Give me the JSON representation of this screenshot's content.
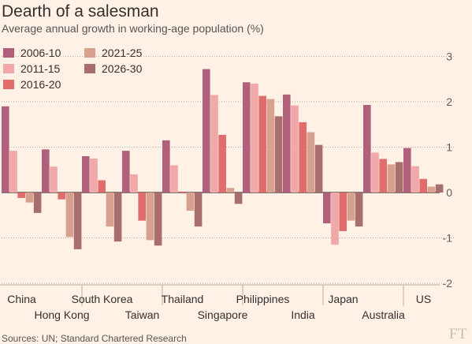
{
  "header": {
    "title": "Dearth of a salesman",
    "subtitle": "Average annual growth in working-age population (%)"
  },
  "footer": {
    "source": "Sources: UN; Standard Chartered Research",
    "logo": "FT"
  },
  "chart_data": {
    "type": "bar",
    "title": "Dearth of a salesman",
    "subtitle": "Average annual growth in working-age population (%)",
    "xlabel": "",
    "ylabel": "",
    "ylim": [
      -2,
      3
    ],
    "yticks": [
      3,
      2,
      1,
      0,
      -1,
      -2
    ],
    "grid": true,
    "legend_position": "top-left",
    "categories": [
      "China",
      "Hong Kong",
      "South Korea",
      "Taiwan",
      "Thailand",
      "Singapore",
      "Philippines",
      "India",
      "Japan",
      "Australia",
      "US"
    ],
    "series": [
      {
        "name": "2006-10",
        "color": "#b0607a",
        "values": [
          1.9,
          0.95,
          0.8,
          0.92,
          1.15,
          2.72,
          2.43,
          2.16,
          -0.68,
          1.93,
          0.98
        ]
      },
      {
        "name": "2011-15",
        "color": "#f0a8a8",
        "values": [
          0.92,
          0.57,
          0.75,
          0.4,
          0.6,
          2.15,
          2.4,
          1.92,
          -1.15,
          0.88,
          0.58
        ]
      },
      {
        "name": "2016-20",
        "color": "#e06c6c",
        "values": [
          -0.12,
          -0.15,
          0.27,
          -0.62,
          0.02,
          1.27,
          2.13,
          1.55,
          -0.85,
          0.74,
          0.3
        ]
      },
      {
        "name": "2021-25",
        "color": "#d8a08e",
        "values": [
          -0.22,
          -0.98,
          -0.75,
          -1.05,
          -0.4,
          0.1,
          2.06,
          1.33,
          -0.62,
          0.62,
          0.13
        ]
      },
      {
        "name": "2026-30",
        "color": "#a86e6e",
        "values": [
          -0.45,
          -1.25,
          -1.08,
          -1.17,
          -0.75,
          -0.25,
          1.68,
          1.05,
          -0.75,
          0.67,
          0.18
        ]
      }
    ]
  }
}
